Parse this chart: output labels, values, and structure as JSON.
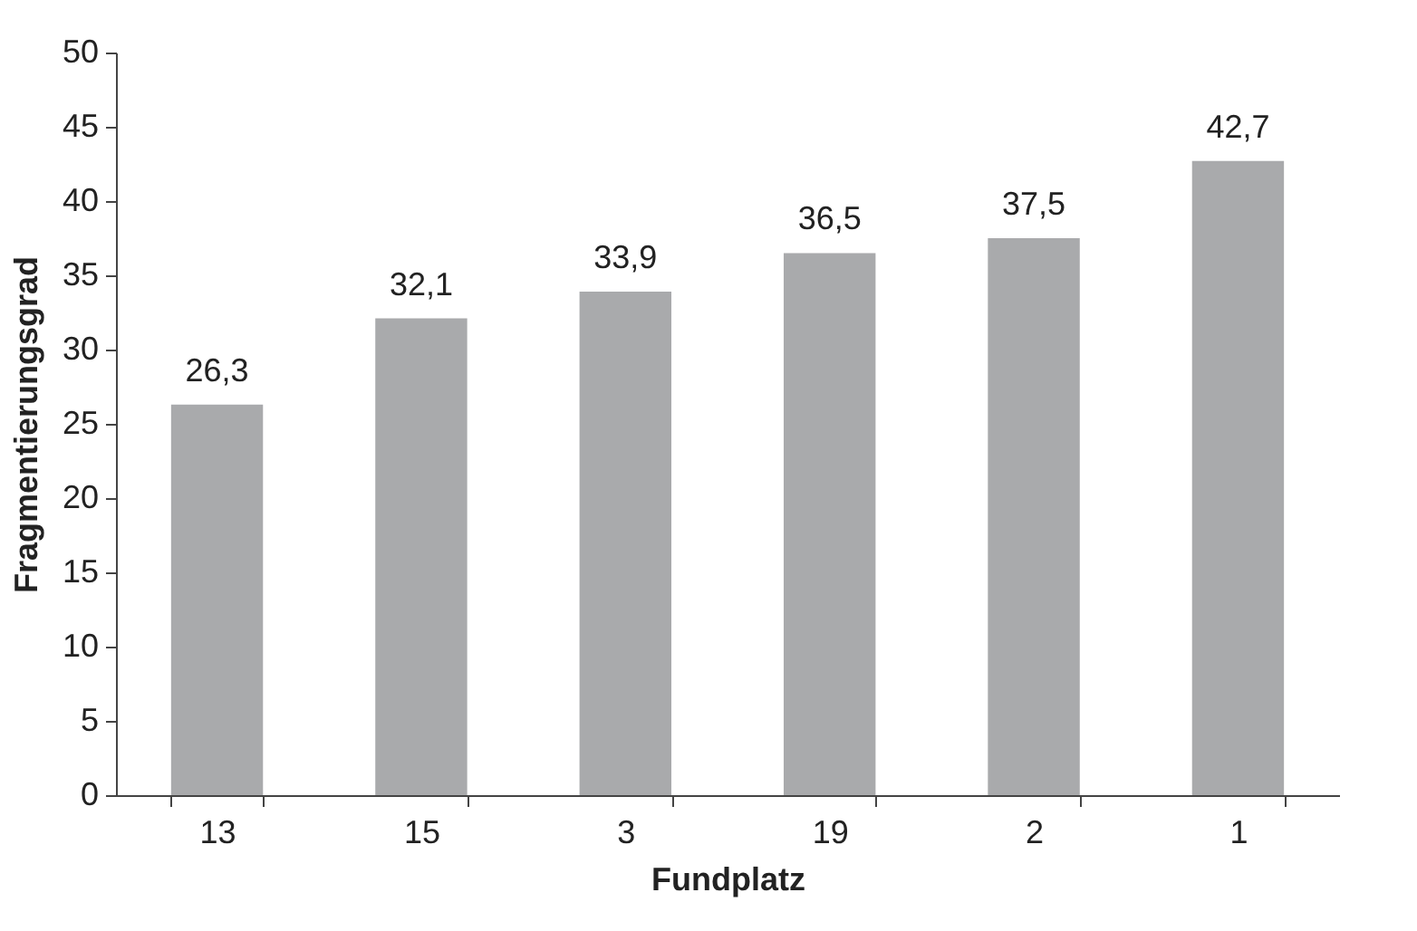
{
  "chart_data": {
    "type": "bar",
    "xlabel": "Fundplatz",
    "ylabel": "Fragmentierungsgrad",
    "categories": [
      "13",
      "15",
      "3",
      "19",
      "2",
      "1"
    ],
    "values": [
      26.3,
      32.1,
      33.9,
      36.5,
      37.5,
      42.7
    ],
    "value_labels": [
      "26,3",
      "32,1",
      "33,9",
      "36,5",
      "37,5",
      "42,7"
    ],
    "color": "#a9aaac",
    "ylim": [
      0,
      50
    ],
    "yticks": [
      0,
      5,
      10,
      15,
      20,
      25,
      30,
      35,
      40,
      45,
      50
    ],
    "grid": false
  }
}
